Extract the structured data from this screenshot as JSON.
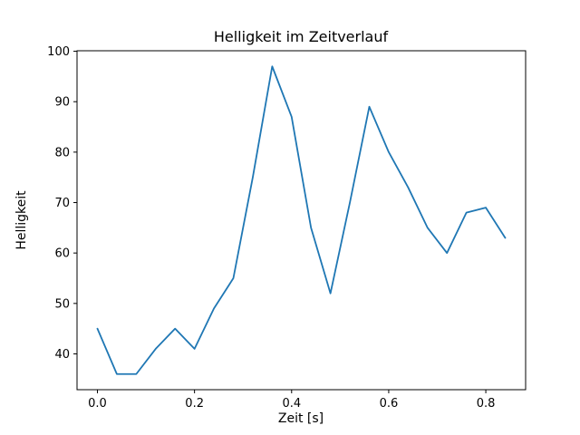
{
  "chart_data": {
    "type": "line",
    "title": "Helligkeit im Zeitverlauf",
    "xlabel": "Zeit [s]",
    "ylabel": "Helligkeit",
    "x": [
      0.0,
      0.04,
      0.08,
      0.12,
      0.16,
      0.2,
      0.24,
      0.28,
      0.32,
      0.36,
      0.4,
      0.44,
      0.48,
      0.52,
      0.56,
      0.6,
      0.64,
      0.68,
      0.72,
      0.76,
      0.8,
      0.84
    ],
    "y": [
      45,
      36,
      36,
      41,
      45,
      41,
      49,
      55,
      75,
      97,
      87,
      65,
      52,
      70,
      89,
      80,
      73,
      65,
      60,
      68,
      69,
      63
    ],
    "xlim": [
      -0.042,
      0.882
    ],
    "ylim": [
      32.9,
      100.1
    ],
    "xticks": [
      0.0,
      0.2,
      0.4,
      0.6,
      0.8
    ],
    "yticks": [
      40,
      50,
      60,
      70,
      80,
      90,
      100
    ],
    "line_color": "#1f77b4",
    "axis_color": "#000000",
    "grid": false,
    "legend_position": "none"
  }
}
